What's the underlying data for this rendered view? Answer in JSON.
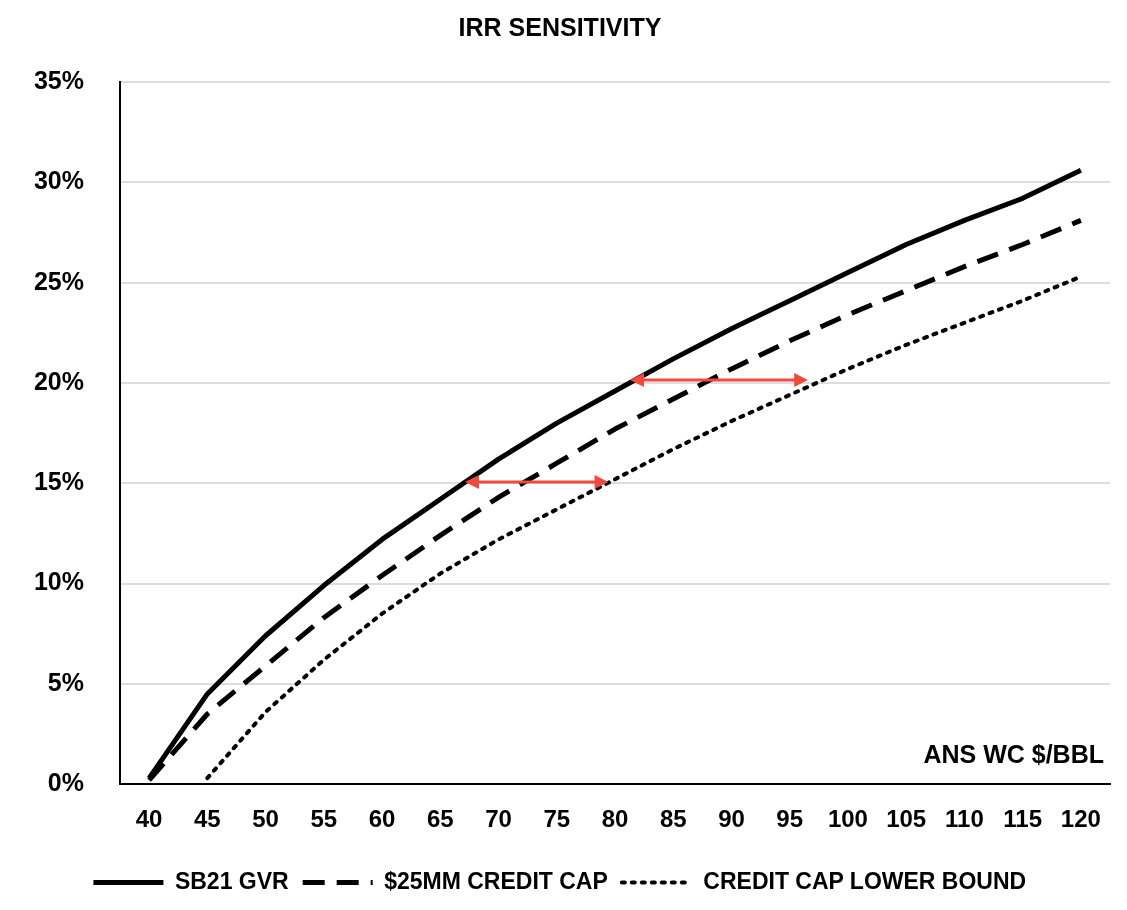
{
  "chart_data": {
    "type": "line",
    "title": "IRR SENSITIVITY",
    "xlabel": "ANS WC $/BBL",
    "categories": [
      "40",
      "45",
      "50",
      "55",
      "60",
      "65",
      "70",
      "75",
      "80",
      "85",
      "90",
      "95",
      "100",
      "105",
      "110",
      "115",
      "120"
    ],
    "series": [
      {
        "name": "SB21 GVR",
        "color": "#000000",
        "line_style": "solid",
        "values": [
          0.3,
          4.5,
          7.4,
          9.9,
          12.2,
          14.2,
          16.2,
          18.0,
          19.6,
          21.2,
          22.7,
          24.1,
          25.5,
          26.9,
          28.1,
          29.2,
          30.6
        ]
      },
      {
        "name": "$25MM CREDIT CAP",
        "color": "#000000",
        "line_style": "dashed",
        "values": [
          0.2,
          3.5,
          5.9,
          8.3,
          10.4,
          12.4,
          14.3,
          16.0,
          17.7,
          19.2,
          20.7,
          22.1,
          23.4,
          24.6,
          25.8,
          26.9,
          28.1
        ]
      },
      {
        "name": "CREDIT CAP LOWER BOUND",
        "color": "#000000",
        "line_style": "dotted",
        "values": [
          null,
          0.3,
          3.6,
          6.2,
          8.5,
          10.5,
          12.2,
          13.7,
          15.2,
          16.7,
          18.1,
          19.4,
          20.7,
          21.9,
          23.0,
          24.1,
          25.3
        ]
      }
    ],
    "ylim": [
      0,
      35
    ],
    "yticks": [
      {
        "value": 0,
        "label": "0%"
      },
      {
        "value": 5,
        "label": "5%"
      },
      {
        "value": 10,
        "label": "10%"
      },
      {
        "value": 15,
        "label": "15%"
      },
      {
        "value": 20,
        "label": "20%"
      },
      {
        "value": 25,
        "label": "25%"
      },
      {
        "value": 30,
        "label": "30%"
      },
      {
        "value": 35,
        "label": "35%"
      }
    ],
    "grid": "y",
    "legend": "bottom",
    "marker": "none"
  }
}
